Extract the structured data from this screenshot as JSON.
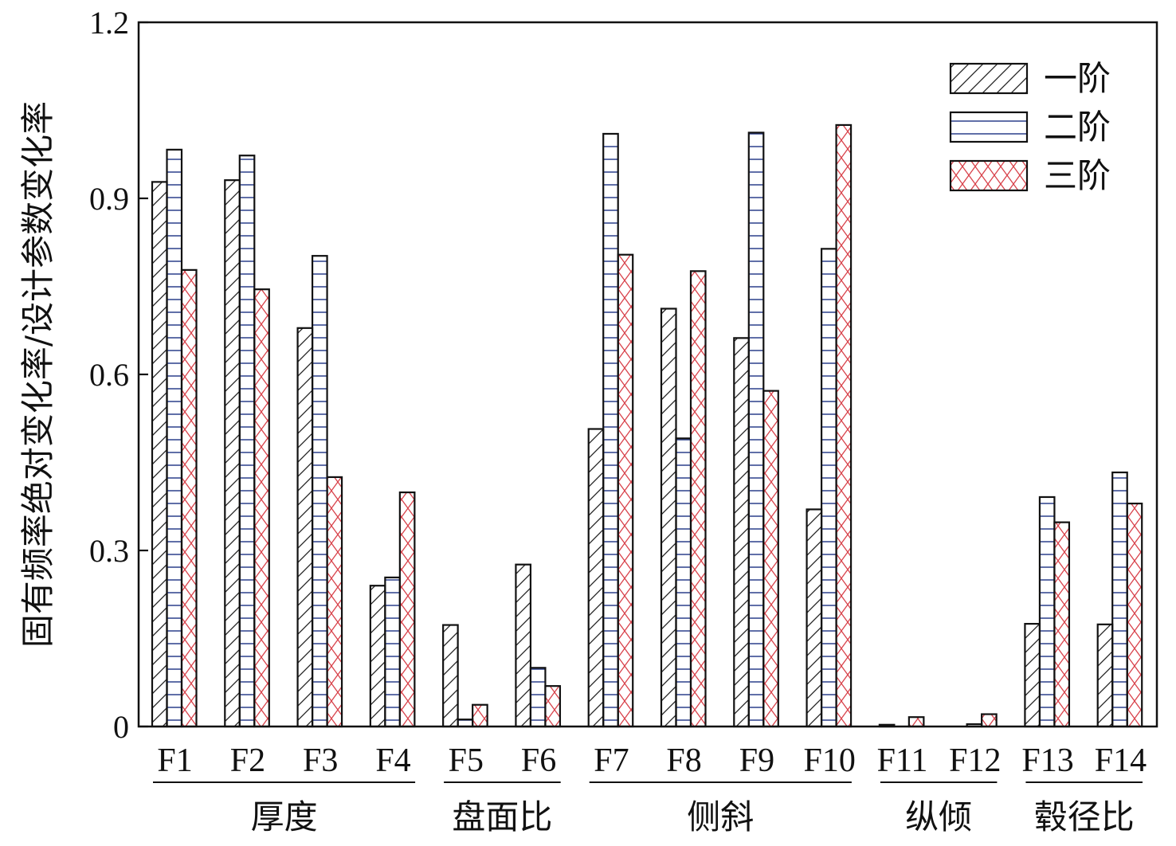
{
  "chart_data": {
    "type": "bar",
    "ylabel": "固有频率绝对变化率/设计参数变化率",
    "xlabel": "",
    "ylim": [
      0,
      1.2
    ],
    "yticks": [
      "0",
      "0.3",
      "0.6",
      "0.9",
      "1.2"
    ],
    "categories": [
      "F1",
      "F2",
      "F3",
      "F4",
      "F5",
      "F6",
      "F7",
      "F8",
      "F9",
      "F10",
      "F11",
      "F12",
      "F13",
      "F14"
    ],
    "groups": [
      {
        "label": "厚度",
        "categories": [
          "F1",
          "F2",
          "F3",
          "F4"
        ]
      },
      {
        "label": "盘面比",
        "categories": [
          "F5",
          "F6"
        ]
      },
      {
        "label": "侧斜",
        "categories": [
          "F7",
          "F8",
          "F9",
          "F10"
        ]
      },
      {
        "label": "纵倾",
        "categories": [
          "F11",
          "F12"
        ]
      },
      {
        "label": "毂径比",
        "categories": [
          "F13",
          "F14"
        ]
      }
    ],
    "series": [
      {
        "name": "一阶",
        "pattern": "diagonal-hatch",
        "values": [
          0.928,
          0.931,
          0.679,
          0.24,
          0.173,
          0.276,
          0.507,
          0.712,
          0.662,
          0.37,
          0.003,
          0.0,
          0.175,
          0.174
        ]
      },
      {
        "name": "二阶",
        "pattern": "horizontal-lines",
        "values": [
          0.983,
          0.973,
          0.802,
          0.254,
          0.012,
          0.1,
          1.01,
          0.491,
          1.012,
          0.814,
          0.0,
          0.004,
          0.391,
          0.433
        ]
      },
      {
        "name": "三阶",
        "pattern": "cross-hatch",
        "values": [
          0.778,
          0.745,
          0.425,
          0.399,
          0.037,
          0.069,
          0.804,
          0.776,
          0.572,
          1.025,
          0.016,
          0.021,
          0.348,
          0.38
        ]
      }
    ],
    "legend_position": "top-right",
    "grid": false,
    "colors": {
      "axis": "#111111",
      "hline": "#2b3f8c",
      "cross": "#d8434c",
      "diag": "#222222"
    }
  }
}
